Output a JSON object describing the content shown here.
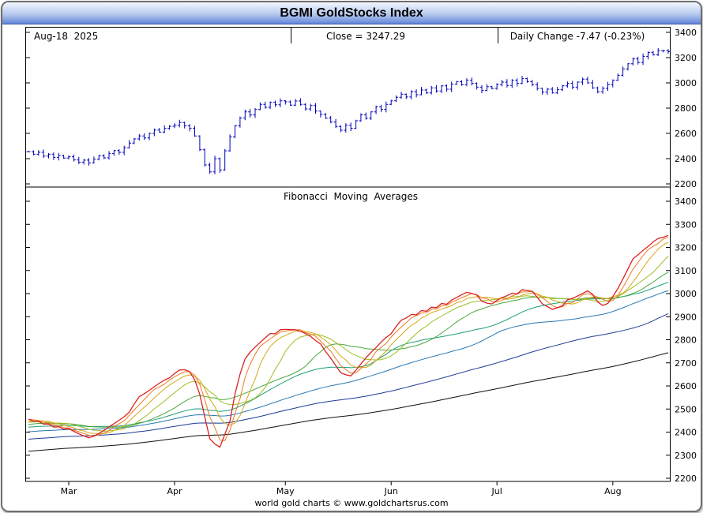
{
  "title": "BGMI GoldStocks Index",
  "header": {
    "date": "Aug-18  2025",
    "close": "Close = 3247.29",
    "daily_change": "Daily Change -7.47 (-0.23%)"
  },
  "panel2_title": "Fibonacci  Moving  Averages",
  "footer": "world gold charts © www.goldchartsrus.com",
  "chart_data": [
    {
      "type": "ohlc-bar",
      "panel": "price",
      "title": "BGMI GoldStocks Index — daily bars",
      "ylim": [
        2200,
        3400
      ],
      "y_ticks": [
        3400,
        3200,
        3000,
        2800,
        2600,
        2400,
        2200
      ],
      "bar_color": "#0000bb",
      "x_months": [
        {
          "label": "Mar",
          "index": 8
        },
        {
          "label": "Apr",
          "index": 29
        },
        {
          "label": "May",
          "index": 51
        },
        {
          "label": "Jun",
          "index": 72
        },
        {
          "label": "Jul",
          "index": 93
        },
        {
          "label": "Aug",
          "index": 116
        }
      ],
      "close": [
        2455,
        2435,
        2450,
        2420,
        2435,
        2410,
        2425,
        2405,
        2415,
        2390,
        2372,
        2388,
        2366,
        2395,
        2422,
        2406,
        2440,
        2464,
        2450,
        2486,
        2524,
        2556,
        2580,
        2564,
        2600,
        2626,
        2610,
        2640,
        2656,
        2665,
        2686,
        2660,
        2640,
        2580,
        2470,
        2350,
        2295,
        2400,
        2310,
        2462,
        2572,
        2660,
        2722,
        2770,
        2746,
        2790,
        2830,
        2806,
        2846,
        2826,
        2858,
        2850,
        2824,
        2856,
        2830,
        2794,
        2820,
        2776,
        2750,
        2720,
        2690,
        2655,
        2625,
        2665,
        2640,
        2700,
        2746,
        2720,
        2770,
        2810,
        2790,
        2830,
        2858,
        2886,
        2910,
        2888,
        2930,
        2906,
        2944,
        2920,
        2960,
        2936,
        2976,
        2950,
        2990,
        3010,
        2986,
        3020,
        2996,
        2966,
        2940,
        2970,
        2956,
        2986,
        3006,
        2980,
        3020,
        2996,
        3034,
        3010,
        2986,
        2956,
        2926,
        2950,
        2920,
        2946,
        2976,
        2996,
        2966,
        3006,
        3030,
        3000,
        2960,
        2930,
        2956,
        2986,
        3020,
        3060,
        3110,
        3152,
        3190,
        3162,
        3210,
        3240,
        3222,
        3255,
        3254.76,
        3247.29
      ],
      "last_date": "Aug-18 2025",
      "last_close": 3247.29,
      "daily_change": -7.47,
      "daily_change_pct": -0.23
    },
    {
      "type": "line",
      "panel": "moving-averages",
      "title": "Fibonacci Moving Averages",
      "ylim": [
        2200,
        3400
      ],
      "y_ticks": [
        3400,
        3300,
        3200,
        3100,
        3000,
        2900,
        2800,
        2700,
        2600,
        2500,
        2400,
        2300,
        2200
      ],
      "values_from": "close",
      "series": [
        {
          "name": "MA 3",
          "period": 3,
          "color": "#dc2020"
        },
        {
          "name": "MA 5",
          "period": 5,
          "color": "#ee7820"
        },
        {
          "name": "MA 8",
          "period": 8,
          "color": "#d4a816"
        },
        {
          "name": "MA 13",
          "period": 13,
          "color": "#9cbe20"
        },
        {
          "name": "MA 21",
          "period": 21,
          "color": "#46aa3c"
        },
        {
          "name": "MA 34",
          "period": 34,
          "color": "#1e9e78"
        },
        {
          "name": "MA 55",
          "period": 55,
          "color": "#2878b4"
        },
        {
          "name": "MA 89",
          "period": 89,
          "color": "#1e3c96"
        },
        {
          "name": "MA 144",
          "period": 144,
          "color": "#101010"
        }
      ],
      "legend": "off",
      "grid": "off"
    }
  ]
}
